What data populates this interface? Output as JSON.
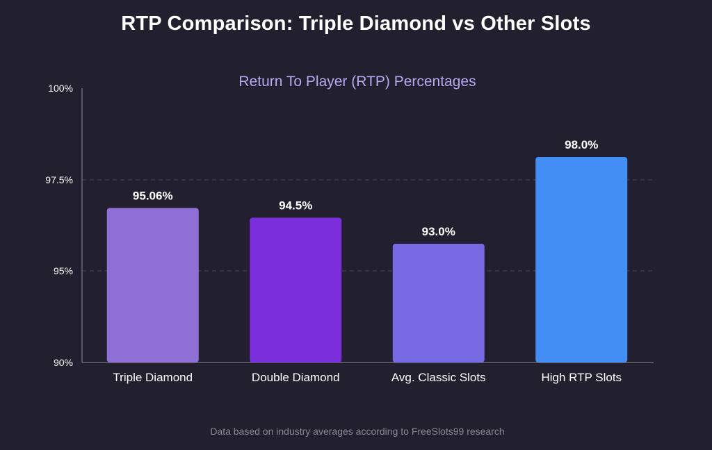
{
  "title": "RTP Comparison: Triple Diamond vs Other Slots",
  "footer": "Data based on industry averages according to FreeSlots99 research",
  "chart_data": {
    "type": "bar",
    "title": "Return To Player (RTP) Percentages",
    "xlabel": "",
    "ylabel": "",
    "categories": [
      "Triple Diamond",
      "Double Diamond",
      "Avg. Classic Slots",
      "High RTP Slots"
    ],
    "values": [
      95.06,
      94.5,
      93.0,
      98.0
    ],
    "value_labels": [
      "95.06%",
      "94.5%",
      "93.0%",
      "98.0%"
    ],
    "colors": [
      "#8e70d6",
      "#7b2fdc",
      "#7769e4",
      "#428ef5"
    ],
    "y_ticks": [
      {
        "value": 90,
        "label": "90%"
      },
      {
        "value": 95,
        "label": "95%"
      },
      {
        "value": 97.5,
        "label": "97.5%"
      },
      {
        "value": 100,
        "label": "100%"
      }
    ],
    "gridlines": "dashed",
    "grid_color": "#4a4856",
    "axis_color": "#6b6977"
  }
}
